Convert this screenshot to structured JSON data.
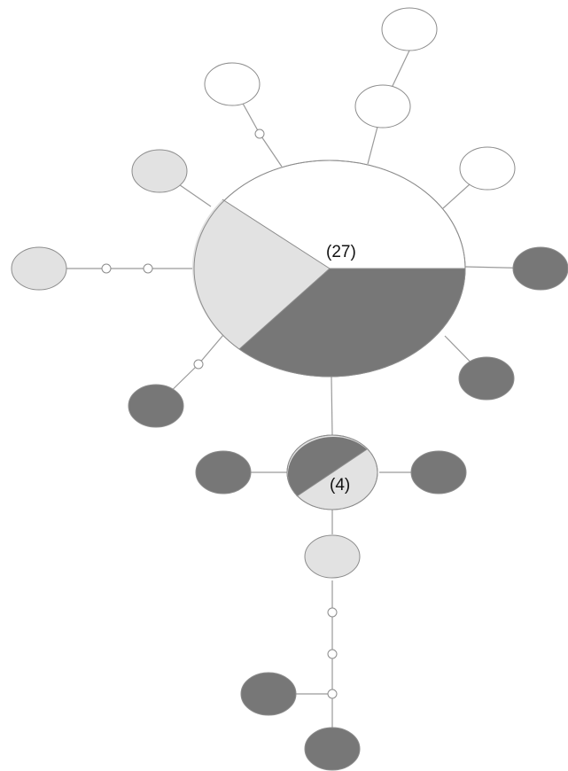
{
  "colors": {
    "white": "#ffffff",
    "light_grey": "#e2e2e2",
    "dark_grey": "#777777",
    "outline": "#8c8c8c",
    "edge": "#9a9a9a"
  },
  "labels": {
    "main_haplotype_count": "(27)",
    "secondary_haplotype_count": "(4)"
  }
}
